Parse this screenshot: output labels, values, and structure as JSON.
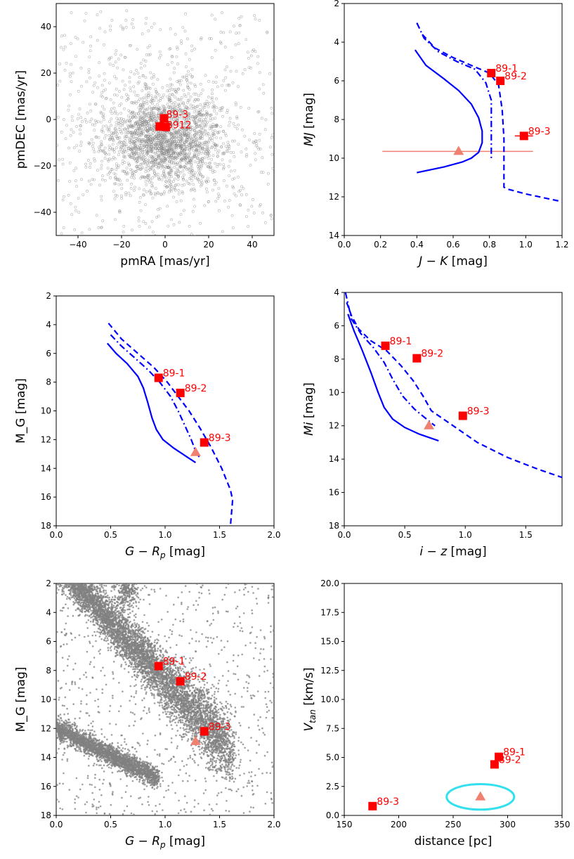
{
  "chart_data": [
    {
      "id": "pm",
      "type": "scatter",
      "xlabel": "pmRA [mas/yr]",
      "ylabel": "pmDEC [mas/yr]",
      "xlim": [
        -50,
        50
      ],
      "ylim": [
        -50,
        50
      ],
      "xticks": [
        -40,
        -20,
        0,
        20,
        40
      ],
      "yticks": [
        -40,
        -20,
        0,
        20,
        40
      ],
      "background_cloud": {
        "description_center": [
          0,
          -8
        ],
        "spread": [
          14,
          11
        ],
        "color": "#808080",
        "marker": "open-circle"
      },
      "points": [
        {
          "label": "89-3",
          "x": -0.5,
          "y": 0.5
        },
        {
          "label": "89-1",
          "x": -2.5,
          "y": -3.0
        },
        {
          "label": "89-2",
          "x": 0.3,
          "y": -3.2
        }
      ],
      "point_label_text": "89-3",
      "overlap_label_text": "8912"
    },
    {
      "id": "jk",
      "type": "line",
      "xlabel": "J − K [mag]",
      "ylabel": "MJ [mag]",
      "xlim": [
        0.0,
        1.2
      ],
      "ylim": [
        14,
        2
      ],
      "xticks": [
        0.0,
        0.2,
        0.4,
        0.6,
        0.8,
        1.0,
        1.2
      ],
      "yticks": [
        2,
        4,
        6,
        8,
        10,
        12,
        14
      ],
      "series": [
        {
          "style": "solid",
          "x": [
            0.39,
            0.45,
            0.55,
            0.63,
            0.7,
            0.74,
            0.76,
            0.76,
            0.74,
            0.7,
            0.65,
            0.55,
            0.4
          ],
          "y": [
            4.4,
            5.2,
            5.9,
            6.5,
            7.2,
            7.9,
            8.6,
            9.2,
            9.7,
            10.0,
            10.2,
            10.45,
            10.75
          ]
        },
        {
          "style": "dashdot",
          "x": [
            0.4,
            0.44,
            0.52,
            0.62,
            0.72,
            0.78,
            0.81,
            0.81,
            0.81
          ],
          "y": [
            3.0,
            3.8,
            4.5,
            5.0,
            5.4,
            6.1,
            7.0,
            8.5,
            10.0
          ]
        },
        {
          "style": "dashed",
          "x": [
            0.43,
            0.5,
            0.6,
            0.7,
            0.8,
            0.85,
            0.87,
            0.88,
            0.88,
            0.9,
            1.0,
            1.1,
            1.2
          ],
          "y": [
            3.6,
            4.3,
            4.8,
            5.2,
            5.6,
            6.2,
            7.5,
            9.0,
            11.5,
            11.6,
            11.85,
            12.05,
            12.25
          ]
        }
      ],
      "points": [
        {
          "label": "89-1",
          "x": 0.81,
          "y": 5.6
        },
        {
          "label": "89-2",
          "x": 0.86,
          "y": 6.0
        },
        {
          "label": "89-3",
          "x": 0.99,
          "y": 8.85,
          "xerr": 0.05
        }
      ],
      "triangle": {
        "x": 0.63,
        "y": 9.65,
        "xerr": [
          0.21,
          1.04
        ]
      }
    },
    {
      "id": "grp1",
      "type": "line",
      "xlabel": "G − Rp [mag]",
      "ylabel": "M_G [mag]",
      "xlim": [
        0.0,
        2.0
      ],
      "ylim": [
        18,
        2
      ],
      "xticks": [
        0.0,
        0.5,
        1.0,
        1.5,
        2.0
      ],
      "yticks": [
        2,
        4,
        6,
        8,
        10,
        12,
        14,
        16,
        18
      ],
      "series": [
        {
          "style": "solid",
          "x": [
            0.47,
            0.55,
            0.65,
            0.75,
            0.8,
            0.84,
            0.88,
            0.92,
            0.98,
            1.08,
            1.2,
            1.28
          ],
          "y": [
            5.3,
            6.0,
            6.7,
            7.6,
            8.4,
            9.4,
            10.5,
            11.3,
            12.0,
            12.6,
            13.2,
            13.6
          ]
        },
        {
          "style": "dashdot",
          "x": [
            0.5,
            0.6,
            0.72,
            0.85,
            0.95,
            1.05,
            1.12,
            1.18,
            1.24,
            1.28,
            1.32
          ],
          "y": [
            4.7,
            5.5,
            6.3,
            7.2,
            8.0,
            9.0,
            10.0,
            11.0,
            12.0,
            12.8,
            13.3
          ]
        },
        {
          "style": "dashed",
          "x": [
            0.48,
            0.6,
            0.75,
            0.9,
            1.02,
            1.12,
            1.22,
            1.32,
            1.42,
            1.52,
            1.6,
            1.62,
            1.6
          ],
          "y": [
            3.9,
            5.0,
            6.0,
            7.0,
            8.0,
            9.0,
            10.0,
            11.2,
            12.5,
            14.0,
            15.5,
            16.2,
            18.0
          ]
        }
      ],
      "points": [
        {
          "label": "89-1",
          "x": 0.94,
          "y": 7.7
        },
        {
          "label": "89-2",
          "x": 1.14,
          "y": 8.75
        },
        {
          "label": "89-3",
          "x": 1.36,
          "y": 12.2
        }
      ],
      "triangle": {
        "x": 1.28,
        "y": 12.9
      }
    },
    {
      "id": "iz",
      "type": "line",
      "xlabel": "i − z [mag]",
      "ylabel": "Mi [mag]",
      "xlim": [
        0.0,
        1.8
      ],
      "ylim": [
        18,
        4
      ],
      "xticks": [
        0.0,
        0.5,
        1.0,
        1.5
      ],
      "yticks": [
        4,
        6,
        8,
        10,
        12,
        14,
        16,
        18
      ],
      "series": [
        {
          "style": "solid",
          "x": [
            0.03,
            0.08,
            0.15,
            0.22,
            0.28,
            0.33,
            0.4,
            0.5,
            0.62,
            0.78
          ],
          "y": [
            5.3,
            6.3,
            7.5,
            8.8,
            10.0,
            10.9,
            11.6,
            12.1,
            12.5,
            12.9
          ]
        },
        {
          "style": "dashdot",
          "x": [
            0.01,
            0.06,
            0.14,
            0.24,
            0.33,
            0.4,
            0.48,
            0.58,
            0.68,
            0.75
          ],
          "y": [
            4.0,
            5.6,
            6.5,
            7.3,
            8.2,
            9.2,
            10.2,
            11.0,
            11.6,
            12.0
          ]
        },
        {
          "style": "dashed",
          "x": [
            0.02,
            0.06,
            0.12,
            0.22,
            0.35,
            0.47,
            0.57,
            0.65,
            0.72,
            0.9,
            1.1,
            1.35,
            1.6,
            1.8
          ],
          "y": [
            4.6,
            5.4,
            6.2,
            6.9,
            7.5,
            8.4,
            9.3,
            10.2,
            11.1,
            12.0,
            13.0,
            13.9,
            14.6,
            15.1
          ]
        }
      ],
      "points": [
        {
          "label": "89-1",
          "x": 0.34,
          "y": 7.2
        },
        {
          "label": "89-2",
          "x": 0.6,
          "y": 7.95
        },
        {
          "label": "89-3",
          "x": 0.98,
          "y": 11.4
        }
      ],
      "triangle": {
        "x": 0.7,
        "y": 12.0
      }
    },
    {
      "id": "grp2",
      "type": "scatter",
      "xlabel": "G − Rp [mag]",
      "ylabel": "M_G [mag]",
      "xlim": [
        0.0,
        2.0
      ],
      "ylim": [
        18,
        2
      ],
      "xticks": [
        0.0,
        0.5,
        1.0,
        1.5,
        2.0
      ],
      "yticks": [
        2,
        4,
        6,
        8,
        10,
        12,
        14,
        16,
        18
      ],
      "background_cloud": {
        "color": "#808080",
        "marker": "dot"
      },
      "points": [
        {
          "label": "89-1",
          "x": 0.94,
          "y": 7.7
        },
        {
          "label": "89-2",
          "x": 1.14,
          "y": 8.75
        },
        {
          "label": "89-3",
          "x": 1.36,
          "y": 12.2
        }
      ],
      "triangle": {
        "x": 1.28,
        "y": 12.9
      }
    },
    {
      "id": "vtan",
      "type": "scatter",
      "xlabel": "distance [pc]",
      "ylabel": "Vtan [km/s]",
      "xlim": [
        150,
        350
      ],
      "ylim": [
        0.0,
        20.0
      ],
      "xticks": [
        150,
        200,
        250,
        300,
        350
      ],
      "yticks": [
        0.0,
        2.5,
        5.0,
        7.5,
        10.0,
        12.5,
        15.0,
        17.5,
        20.0
      ],
      "points": [
        {
          "label": "89-1",
          "x": 292,
          "y": 5.05
        },
        {
          "label": "89-2",
          "x": 288,
          "y": 4.4
        },
        {
          "label": "89-3",
          "x": 176,
          "y": 0.8
        }
      ],
      "triangle": {
        "x": 275,
        "y": 1.6
      },
      "ellipse": {
        "cx": 275,
        "cy": 1.6,
        "rx": 31,
        "ry": 1.1,
        "color": "#33e0ee"
      }
    }
  ],
  "colors": {
    "marker": "#ff0000",
    "triangle": "#f08070",
    "model": "#0000ff",
    "cloud": "#808080",
    "errorbar": "#f08070"
  }
}
